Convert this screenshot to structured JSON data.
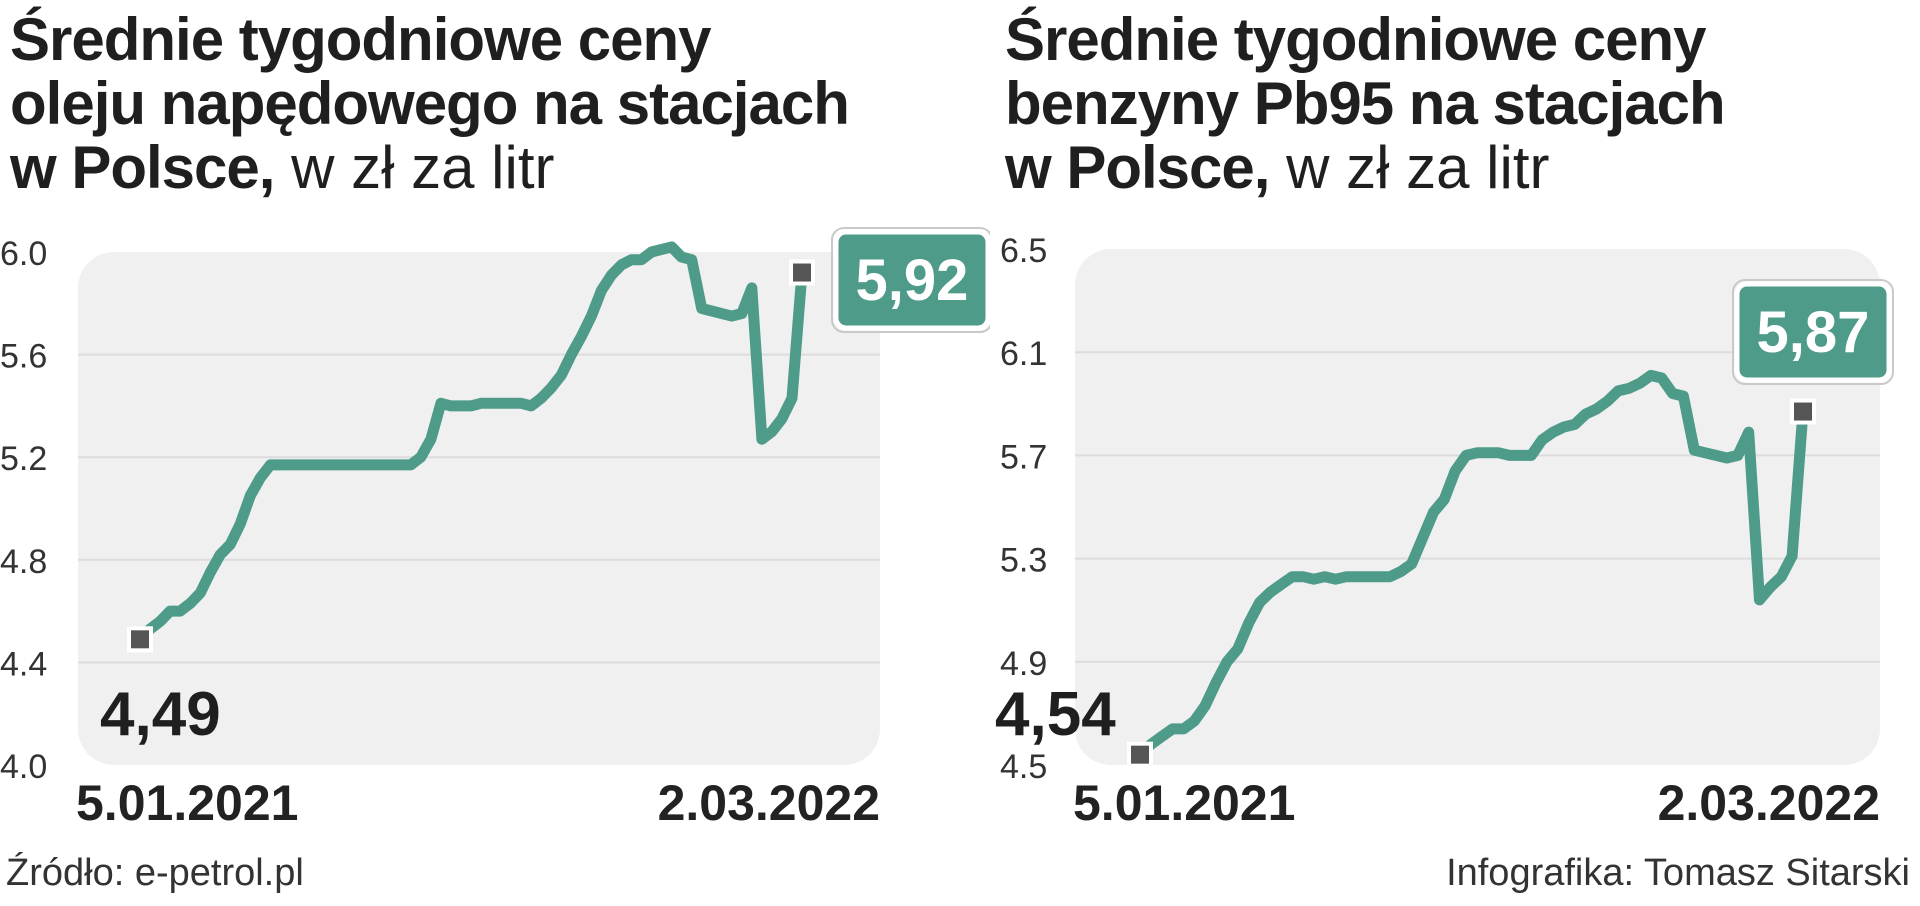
{
  "charts": [
    {
      "title_bold_1": "Średnie tygodniowe ceny",
      "title_bold_2": "oleju napędowego na stacjach",
      "title_bold_3": "w Polsce,",
      "title_unit": " w zł za litr",
      "start_label": "4,49",
      "end_label": "5,92",
      "x_start": "5.01.2021",
      "x_end": "2.03.2022"
    },
    {
      "title_bold_1": "Średnie tygodniowe ceny",
      "title_bold_2": "benzyny Pb95 na stacjach",
      "title_bold_3": "w Polsce,",
      "title_unit": " w zł za litr",
      "start_label": "4,54",
      "end_label": "5,87",
      "x_start": "5.01.2021",
      "x_end": "2.03.2022"
    }
  ],
  "footer": {
    "source": "Źródło: e-petrol.pl",
    "credit": "Infografika: Tomasz Sitarski"
  },
  "chart_data": [
    {
      "type": "line",
      "title": "Średnie tygodniowe ceny oleju napędowego na stacjach w Polsce, w zł za litr",
      "xlabel": "",
      "ylabel": "",
      "ylim": [
        4.0,
        6.0
      ],
      "yticks": [
        4.0,
        4.4,
        4.8,
        5.2,
        5.6,
        6.0
      ],
      "ytick_labels": [
        "4.0",
        "4.4",
        "4.8",
        "5.2",
        "5.6",
        "6.0"
      ],
      "x_labels": [
        "5.01.2021",
        "2.03.2022"
      ],
      "grid": true,
      "line_color": "#4e9b8a",
      "y": [
        4.49,
        4.53,
        4.56,
        4.6,
        4.6,
        4.63,
        4.67,
        4.75,
        4.82,
        4.86,
        4.94,
        5.05,
        5.12,
        5.17,
        5.17,
        5.17,
        5.17,
        5.17,
        5.17,
        5.17,
        5.17,
        5.17,
        5.17,
        5.17,
        5.17,
        5.17,
        5.17,
        5.17,
        5.2,
        5.27,
        5.41,
        5.4,
        5.4,
        5.4,
        5.41,
        5.41,
        5.41,
        5.41,
        5.41,
        5.4,
        5.43,
        5.47,
        5.52,
        5.6,
        5.67,
        5.75,
        5.85,
        5.91,
        5.95,
        5.97,
        5.97,
        6.0,
        6.01,
        6.02,
        5.98,
        5.97,
        5.78,
        5.77,
        5.76,
        5.75,
        5.76,
        5.86,
        5.27,
        5.3,
        5.35,
        5.43,
        5.92
      ],
      "start_value": 4.49,
      "end_value": 5.92
    },
    {
      "type": "line",
      "title": "Średnie tygodniowe ceny benzyny Pb95 na stacjach w Polsce, w zł za litr",
      "xlabel": "",
      "ylabel": "",
      "ylim": [
        4.5,
        6.5
      ],
      "yticks": [
        4.5,
        4.9,
        5.3,
        5.7,
        6.1,
        6.5
      ],
      "ytick_labels": [
        "4.5",
        "4.9",
        "5.3",
        "5.7",
        "6.1",
        "6.5"
      ],
      "x_labels": [
        "5.01.2021",
        "2.03.2022"
      ],
      "grid": true,
      "line_color": "#4e9b8a",
      "y": [
        4.54,
        4.58,
        4.61,
        4.64,
        4.64,
        4.67,
        4.73,
        4.82,
        4.9,
        4.95,
        5.05,
        5.13,
        5.17,
        5.2,
        5.23,
        5.23,
        5.22,
        5.23,
        5.22,
        5.23,
        5.23,
        5.23,
        5.23,
        5.23,
        5.25,
        5.28,
        5.38,
        5.48,
        5.53,
        5.64,
        5.7,
        5.71,
        5.71,
        5.71,
        5.7,
        5.7,
        5.7,
        5.76,
        5.79,
        5.81,
        5.82,
        5.86,
        5.88,
        5.91,
        5.95,
        5.96,
        5.98,
        6.01,
        6.0,
        5.94,
        5.93,
        5.72,
        5.71,
        5.7,
        5.69,
        5.7,
        5.79,
        5.14,
        5.19,
        5.23,
        5.31,
        5.87
      ],
      "start_value": 4.54,
      "end_value": 5.87
    }
  ]
}
